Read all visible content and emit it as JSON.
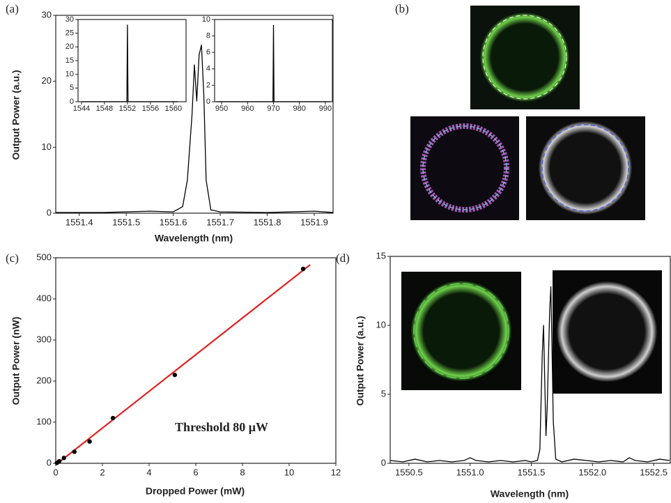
{
  "chart_data": [
    {
      "type": "line",
      "label": "(a)",
      "xlabel": "Wavelength (nm)",
      "ylabel": "Output Power (a.u.)",
      "color": "#000000",
      "x": [
        1551.35,
        1551.45,
        1551.55,
        1551.6,
        1551.62,
        1551.63,
        1551.64,
        1551.645,
        1551.65,
        1551.655,
        1551.66,
        1551.665,
        1551.67,
        1551.68,
        1551.7,
        1551.8,
        1551.9,
        1551.94
      ],
      "values": [
        0.1,
        0.1,
        0.3,
        0.2,
        1,
        5,
        15,
        22.5,
        17,
        24,
        25.5,
        18,
        5,
        0.5,
        0.2,
        0.1,
        0.3,
        0.1
      ],
      "xlim": [
        1551.35,
        1551.94
      ],
      "ylim": [
        0,
        30
      ],
      "xticks": [
        1551.4,
        1551.5,
        1551.6,
        1551.7,
        1551.8,
        1551.9
      ],
      "yticks": [
        0,
        10,
        20,
        30
      ]
    },
    {
      "type": "line",
      "color": "#000000",
      "x": [
        1544,
        1551.9,
        1552,
        1552.1,
        1560.8
      ],
      "values": [
        0,
        0,
        28,
        0,
        0
      ],
      "xlim": [
        1543.4,
        1562.2
      ],
      "ylim": [
        0,
        30
      ],
      "xticks": [
        1544,
        1548,
        1552,
        1556,
        1560
      ],
      "yticks": [
        0,
        5,
        10,
        15,
        20,
        25,
        30
      ]
    },
    {
      "type": "line",
      "color": "#000000",
      "x": [
        948,
        969.8,
        970,
        970.2,
        992
      ],
      "values": [
        0,
        0,
        9.3,
        0,
        0
      ],
      "xlim": [
        947.3,
        992.7
      ],
      "ylim": [
        0,
        10
      ],
      "xticks": [
        950,
        960,
        970,
        980,
        990
      ],
      "yticks": [
        0,
        2,
        4,
        6,
        8,
        10
      ]
    },
    {
      "type": "image",
      "label": "(b)"
    },
    {
      "type": "scatter",
      "label": "(c)",
      "xlabel": "Dropped Power (mW)",
      "ylabel": "Output Power (nW)",
      "annotation": "Threshold 80 μW",
      "color": "#000000",
      "x": [
        0.05,
        0.15,
        0.35,
        0.8,
        1.45,
        2.45,
        5.1,
        10.6
      ],
      "values": [
        1,
        5,
        13,
        28,
        53,
        110,
        215,
        473
      ],
      "fit": {
        "color": "#e02020",
        "x": [
          0.08,
          10.9
        ],
        "values": [
          0,
          483
        ]
      },
      "xlim": [
        0,
        12
      ],
      "ylim": [
        0,
        500
      ],
      "xticks": [
        0,
        2,
        4,
        6,
        8,
        10,
        12
      ],
      "yticks": [
        0,
        100,
        200,
        300,
        400,
        500
      ]
    },
    {
      "type": "line",
      "label": "(d)",
      "xlabel": "Wavelength (nm)",
      "ylabel": "Output Power (a.u.)",
      "color": "#000000",
      "x": [
        1550.35,
        1550.45,
        1550.55,
        1550.65,
        1550.75,
        1550.85,
        1550.95,
        1551.0,
        1551.05,
        1551.15,
        1551.25,
        1551.35,
        1551.45,
        1551.5,
        1551.55,
        1551.57,
        1551.59,
        1551.6,
        1551.62,
        1551.63,
        1551.65,
        1551.66,
        1551.68,
        1551.7,
        1551.75,
        1551.85,
        1551.95,
        1552.05,
        1552.15,
        1552.25,
        1552.3,
        1552.35,
        1552.45,
        1552.55,
        1552.63
      ],
      "values": [
        0.2,
        0.1,
        0.3,
        0.1,
        0.2,
        0.1,
        0.2,
        0.4,
        0.2,
        0.1,
        0.2,
        0.1,
        0.2,
        0.1,
        0.2,
        1,
        8,
        10,
        2,
        4,
        11,
        12.8,
        3,
        0.3,
        0.1,
        0.3,
        0.2,
        0.1,
        0.2,
        0.1,
        0.4,
        0.2,
        0.1,
        0.3,
        0.2
      ],
      "xlim": [
        1550.347,
        1552.636
      ],
      "ylim": [
        0,
        15
      ],
      "xticks": [
        1550.5,
        {
          "value": 1551,
          "label": "1551.0"
        },
        1551.5,
        {
          "value": 1552,
          "label": "1552.0"
        },
        1552.5
      ],
      "yticks": [
        0,
        5,
        10,
        15
      ]
    }
  ]
}
